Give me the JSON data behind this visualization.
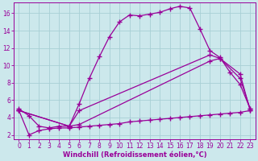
{
  "bg_color": "#cce8ec",
  "grid_color": "#a8cfd5",
  "line_color": "#990099",
  "line_width": 0.9,
  "marker": "+",
  "marker_size": 4,
  "marker_ew": 1.0,
  "xlabel": "Windchill (Refroidissement éolien,°C)",
  "xlabel_fontsize": 6.0,
  "tick_fontsize": 5.5,
  "xlim": [
    -0.5,
    23.5
  ],
  "ylim": [
    1.5,
    17.2
  ],
  "xticks": [
    0,
    1,
    2,
    3,
    4,
    5,
    6,
    7,
    8,
    9,
    10,
    11,
    12,
    13,
    14,
    15,
    16,
    17,
    18,
    19,
    20,
    21,
    22,
    23
  ],
  "yticks": [
    2,
    4,
    6,
    8,
    10,
    12,
    14,
    16
  ],
  "line1_x": [
    0,
    1,
    2,
    3,
    4,
    5,
    6,
    7,
    8,
    9,
    10,
    11,
    12,
    13,
    14,
    15,
    16,
    17,
    18,
    19,
    20,
    21,
    22,
    23
  ],
  "line1_y": [
    5.0,
    4.2,
    3.0,
    2.8,
    3.0,
    3.0,
    5.6,
    8.5,
    11.0,
    13.3,
    15.0,
    15.8,
    15.7,
    15.9,
    16.1,
    16.5,
    16.8,
    16.6,
    14.2,
    11.7,
    10.9,
    9.2,
    7.8,
    5.0
  ],
  "line2_x": [
    0,
    5,
    6,
    19,
    20,
    22,
    23
  ],
  "line2_y": [
    4.8,
    3.0,
    4.8,
    11.2,
    10.8,
    8.5,
    5.0
  ],
  "line3_x": [
    0,
    5,
    6,
    19,
    20,
    22,
    23
  ],
  "line3_y": [
    4.8,
    3.0,
    3.2,
    10.5,
    10.8,
    9.0,
    4.8
  ],
  "line4_x": [
    0,
    1,
    2,
    3,
    4,
    5,
    6,
    7,
    8,
    9,
    10,
    11,
    12,
    13,
    14,
    15,
    16,
    17,
    18,
    19,
    20,
    21,
    22,
    23
  ],
  "line4_y": [
    4.8,
    2.0,
    2.5,
    2.7,
    2.8,
    2.8,
    2.9,
    3.0,
    3.1,
    3.2,
    3.3,
    3.5,
    3.6,
    3.7,
    3.8,
    3.9,
    4.0,
    4.1,
    4.2,
    4.3,
    4.4,
    4.5,
    4.6,
    4.8
  ]
}
